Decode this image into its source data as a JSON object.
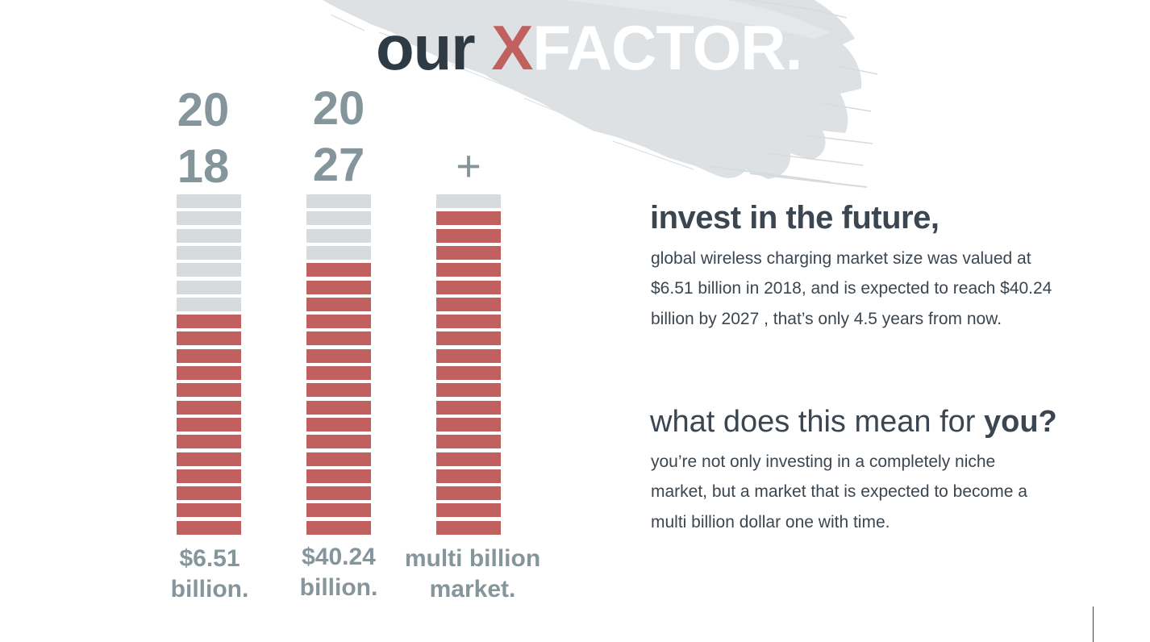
{
  "title": {
    "prefix": "our ",
    "x": "X",
    "suffix": "FACTOR."
  },
  "colors": {
    "filled": "#c0605f",
    "empty": "#d6dbde",
    "label": "#85959c",
    "text": "#3b4650",
    "title": "#2f3b44"
  },
  "chart_data": {
    "type": "bar",
    "segments_per_bar": 20,
    "categories": [
      "2018",
      "2027",
      "+"
    ],
    "values": [
      13,
      16,
      19
    ],
    "bar_labels": [
      "$6.51\nbillion.",
      "$40.24\nbillion.",
      "multi billion\nmarket."
    ]
  },
  "columns": [
    {
      "year_top": "20",
      "year_bottom": "18",
      "amount": "$6.51\nbillion."
    },
    {
      "year_top": "20",
      "year_bottom": "27",
      "amount": "$40.24\nbillion."
    },
    {
      "plus": "+",
      "amount": "multi billion\nmarket."
    }
  ],
  "invest": {
    "heading": "invest in the future,",
    "body": " global wireless charging market size was valued at $6.51 billion in 2018, and is expected to reach $40.24 billion by 2027 , that’s only 4.5 years from now."
  },
  "meaning": {
    "heading_regular": "what does this mean for ",
    "heading_bold": "you?",
    "body": "you’re not only investing in a completely niche market, but a market that is expected to become a multi billion dollar one with time."
  }
}
